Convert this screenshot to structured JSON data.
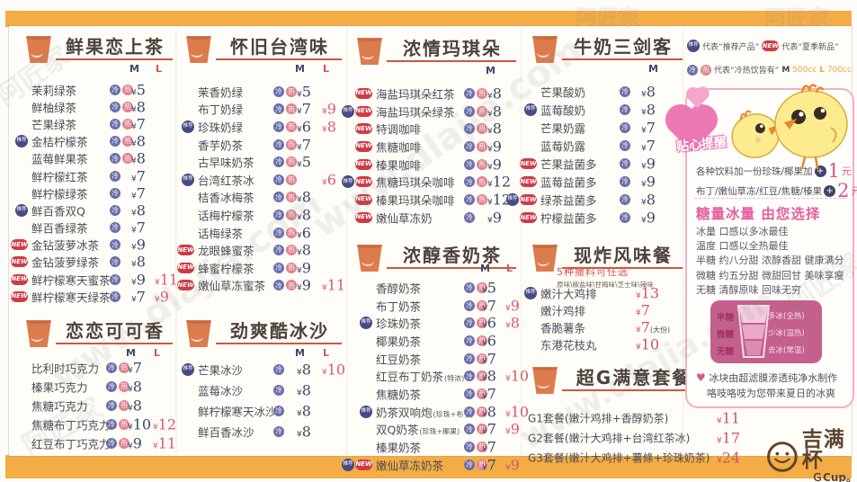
{
  "watermark": {
    "site": "www.dlajia.com",
    "name": "阿匠家"
  },
  "badges": {
    "rec": "推荐",
    "new": "NEW",
    "cold": "冷",
    "hot": "热"
  },
  "legend": {
    "rec_text": "代表“推荐产品”",
    "new_text": "代表“夏季新品”",
    "temp_text": "代表“冷热饮皆有”",
    "m_label": "M",
    "m_cc": "500cc",
    "l_label": "L",
    "l_cc": "700cc"
  },
  "sections": [
    {
      "id": "fruit-tea",
      "title": "鲜果恋上茶",
      "cols": [
        "M",
        "L"
      ],
      "items": [
        {
          "name": "茉莉绿茶",
          "temp": "ch",
          "m": "5"
        },
        {
          "name": "鲜柚绿茶",
          "temp": "ch",
          "m": "8"
        },
        {
          "name": "芒果绿茶",
          "temp": "ch",
          "m": "7"
        },
        {
          "name": "金桔柠檬茶",
          "badges": [
            "rec"
          ],
          "temp": "ch",
          "m": "8"
        },
        {
          "name": "蓝莓鲜果茶",
          "temp": "ch",
          "m": "8"
        },
        {
          "name": "鲜柠檬红茶",
          "temp": "c",
          "m": "7"
        },
        {
          "name": "鲜柠檬绿茶",
          "temp": "c",
          "m": "7"
        },
        {
          "name": "鲜百香双Q",
          "badges": [
            "rec"
          ],
          "temp": "c",
          "m": "8"
        },
        {
          "name": "鲜百香绿茶",
          "temp": "c",
          "m": "7"
        },
        {
          "name": "金钻菠萝冰茶",
          "badges": [
            "new"
          ],
          "temp": "c",
          "m": "9"
        },
        {
          "name": "金钻菠萝绿茶",
          "badges": [
            "new"
          ],
          "temp": "c",
          "m": "8"
        },
        {
          "name": "鲜柠檬寒天蜜茶",
          "badges": [
            "new"
          ],
          "temp": "c",
          "m": "9",
          "l": "11"
        },
        {
          "name": "鲜柠檬寒天绿茶",
          "badges": [
            "new"
          ],
          "temp": "c",
          "m": "7",
          "l": "9"
        }
      ]
    },
    {
      "id": "taiwan",
      "title": "怀旧台湾味",
      "cols": [
        "M",
        "L"
      ],
      "items": [
        {
          "name": "茉香奶绿",
          "temp": "ch",
          "m": "5"
        },
        {
          "name": "布丁奶绿",
          "temp": "ch",
          "m": "7",
          "l": "9"
        },
        {
          "name": "珍珠奶绿",
          "badges": [
            "rec"
          ],
          "temp": "ch",
          "m": "6",
          "l": "8"
        },
        {
          "name": "香芋奶茶",
          "temp": "ch",
          "m": "7"
        },
        {
          "name": "古早味奶茶",
          "temp": "ch",
          "m": "5"
        },
        {
          "name": "台湾红茶冰",
          "badges": [
            "rec"
          ],
          "temp": "ch",
          "l": "6"
        },
        {
          "name": "桔香冰梅茶",
          "temp": "ch",
          "m": "8"
        },
        {
          "name": "话梅柠檬茶",
          "temp": "ch",
          "m": "8"
        },
        {
          "name": "话梅绿茶",
          "temp": "ch",
          "m": "6"
        },
        {
          "name": "龙眼蜂蜜茶",
          "badges": [
            "new"
          ],
          "temp": "ch",
          "m": "8"
        },
        {
          "name": "蜂蜜柠檬茶",
          "badges": [
            "new"
          ],
          "temp": "ch",
          "m": "9"
        },
        {
          "name": "嫩仙草冻蜜茶",
          "badges": [
            "new"
          ],
          "temp": "ch",
          "m": "9",
          "l": "11"
        }
      ]
    },
    {
      "id": "macchiato",
      "title": "浓情玛琪朵",
      "cols": [
        "M"
      ],
      "items": [
        {
          "name": "海盐玛琪朵红茶",
          "badges": [
            "new"
          ],
          "temp": "ch",
          "m": "8"
        },
        {
          "name": "海盐玛琪朵绿茶",
          "badges": [
            "rec",
            "new"
          ],
          "temp": "ch",
          "m": "8"
        },
        {
          "name": "特调咖啡",
          "badges": [
            "new"
          ],
          "temp": "ch",
          "m": "8"
        },
        {
          "name": "焦糖咖啡",
          "badges": [
            "new"
          ],
          "temp": "ch",
          "m": "9"
        },
        {
          "name": "榛果咖啡",
          "badges": [
            "new"
          ],
          "temp": "ch",
          "m": "9"
        },
        {
          "name": "焦糖玛琪朵咖啡",
          "badges": [
            "rec",
            "new"
          ],
          "temp": "ch",
          "m": "12"
        },
        {
          "name": "榛果玛琪朵咖啡",
          "badges": [
            "new"
          ],
          "temp": "ch",
          "m": "12"
        },
        {
          "name": "嫩仙草冻奶",
          "badges": [
            "new"
          ],
          "temp": "c",
          "m": "9"
        }
      ]
    },
    {
      "id": "milktea",
      "title": "浓醇香奶茶",
      "cols": [
        "M",
        "L"
      ],
      "items": [
        {
          "name": "香醇奶茶",
          "temp": "ch",
          "m": "5"
        },
        {
          "name": "布丁奶茶",
          "temp": "ch",
          "m": "7",
          "l": "9"
        },
        {
          "name": "珍珠奶茶",
          "badges": [
            "rec"
          ],
          "temp": "ch",
          "m": "6",
          "l": "8"
        },
        {
          "name": "椰果奶茶",
          "temp": "ch",
          "m": "6"
        },
        {
          "name": "红豆奶茶",
          "temp": "ch",
          "m": "7"
        },
        {
          "name": "红豆布丁奶茶",
          "sub": "(特浓)",
          "temp": "ch",
          "m": "8",
          "l": "10"
        },
        {
          "name": "焦糖奶茶",
          "temp": "ch",
          "m": "7"
        },
        {
          "name": "奶茶双响炮",
          "sub": "(珍珠+布丁)",
          "badges": [
            "rec"
          ],
          "temp": "ch",
          "m": "8",
          "l": "10"
        },
        {
          "name": "双Q奶茶",
          "sub": "(珍珠+椰果)",
          "temp": "ch",
          "m": "7",
          "l": "9"
        },
        {
          "name": "榛果奶茶",
          "temp": "ch",
          "m": "7"
        },
        {
          "name": "嫩仙草冻奶茶",
          "badges": [
            "rec",
            "new"
          ],
          "temp": "ch",
          "m": "7",
          "l": "9"
        }
      ]
    },
    {
      "id": "milktrio",
      "title": "牛奶三剑客",
      "cols": [
        "M"
      ],
      "items": [
        {
          "name": "芒果酸奶",
          "temp": "c",
          "m": "8"
        },
        {
          "name": "蓝莓酸奶",
          "badges": [
            "rec"
          ],
          "temp": "c",
          "m": "8"
        },
        {
          "name": "芒果奶露",
          "temp": "c",
          "m": "7"
        },
        {
          "name": "蓝莓奶露",
          "temp": "c",
          "m": "7"
        },
        {
          "name": "芒果益菌多",
          "badges": [
            "new"
          ],
          "temp": "c",
          "m": "9"
        },
        {
          "name": "蓝莓益菌多",
          "badges": [
            "new"
          ],
          "temp": "c",
          "m": "9"
        },
        {
          "name": "绿茶益菌多",
          "badges": [
            "rec",
            "new"
          ],
          "temp": "c",
          "m": "8"
        },
        {
          "name": "柠檬益菌多",
          "badges": [
            "new"
          ],
          "temp": "c",
          "m": "9"
        }
      ]
    },
    {
      "id": "fried",
      "title": "现炸风味餐",
      "note1": "5种撒料可任选",
      "note2": "原味\\椒盐味\\甘梅味\\芝士味\\辣味",
      "items": [
        {
          "name": "嫩汁大鸡排",
          "badges": [
            "rec"
          ],
          "m": "13"
        },
        {
          "name": "嫩汁鸡排",
          "m": "7"
        },
        {
          "name": "香脆薯条",
          "m": "7",
          "note": "(大份)"
        },
        {
          "name": "东港花枝丸",
          "m": "10"
        }
      ]
    },
    {
      "id": "combo",
      "title": "超G满意套餐",
      "items": [
        {
          "name": "G1套餐(嫩汁鸡排+香醇奶茶)",
          "m": "11"
        },
        {
          "name": "G2套餐(嫩汁大鸡排+台湾红茶冰)",
          "m": "17"
        },
        {
          "name": "G3套餐(嫩汁大鸡排+薯條+珍珠奶茶)",
          "m": "24"
        }
      ]
    },
    {
      "id": "cocoa",
      "title": "恋恋可可香",
      "cols": [
        "M",
        "L"
      ],
      "items": [
        {
          "name": "比利时巧克力",
          "temp": "ch",
          "m": "7"
        },
        {
          "name": "榛果巧克力",
          "temp": "ch",
          "m": "8"
        },
        {
          "name": "焦糖巧克力",
          "temp": "ch",
          "m": "8"
        },
        {
          "name": "焦糖布丁巧克力",
          "temp": "ch",
          "m": "10",
          "l": "12"
        },
        {
          "name": "红豆布丁巧克力",
          "temp": "ch",
          "m": "9",
          "l": "11"
        }
      ]
    },
    {
      "id": "smoothie",
      "title": "劲爽酷冰沙",
      "cols": [
        "M",
        "L"
      ],
      "items": [
        {
          "name": "芒果冰沙",
          "badges": [
            "rec"
          ],
          "temp": "c",
          "m": "8",
          "l": "10"
        },
        {
          "name": "蓝莓冰沙",
          "temp": "c",
          "m": "8"
        },
        {
          "name": "鲜柠檬寒天冰沙",
          "temp": "c",
          "m": "8"
        },
        {
          "name": "鲜百香冰沙",
          "temp": "c",
          "m": "8"
        }
      ]
    }
  ],
  "right_panel": {
    "reminder": "贴心提醒",
    "addon1": "各种饮料加一份珍珠/椰果加",
    "addon1_price": "1",
    "addon2": "布丁/嫩仙草冻/红豆/焦糖/榛果",
    "addon2_price": "2",
    "plus": "+",
    "yuan": "元",
    "sugar_title": "糖量冰量  由您选择",
    "tips": [
      "冰量  口感以多冰最佳",
      "温度  口感以全热最佳",
      "半糖  约八分甜  浓醇香甜  健康满分",
      "微糖  约五分甜  微甜回甘  美味享瘦",
      "无糖  清醇原味  回味无穷"
    ],
    "cup": {
      "left": [
        "半糖",
        "微糖",
        "无糖"
      ],
      "right": [
        "多冰(全热)",
        "少冰(温热)",
        "去冰(常温)"
      ]
    },
    "note_heart": "♥",
    "note1": "冰块由超滤膜渗透纯净水制作",
    "note2": "咯吱咯吱为您带来夏日的冰爽"
  },
  "logo": {
    "cn": "吉满杯",
    "en": "ＧCup。"
  }
}
